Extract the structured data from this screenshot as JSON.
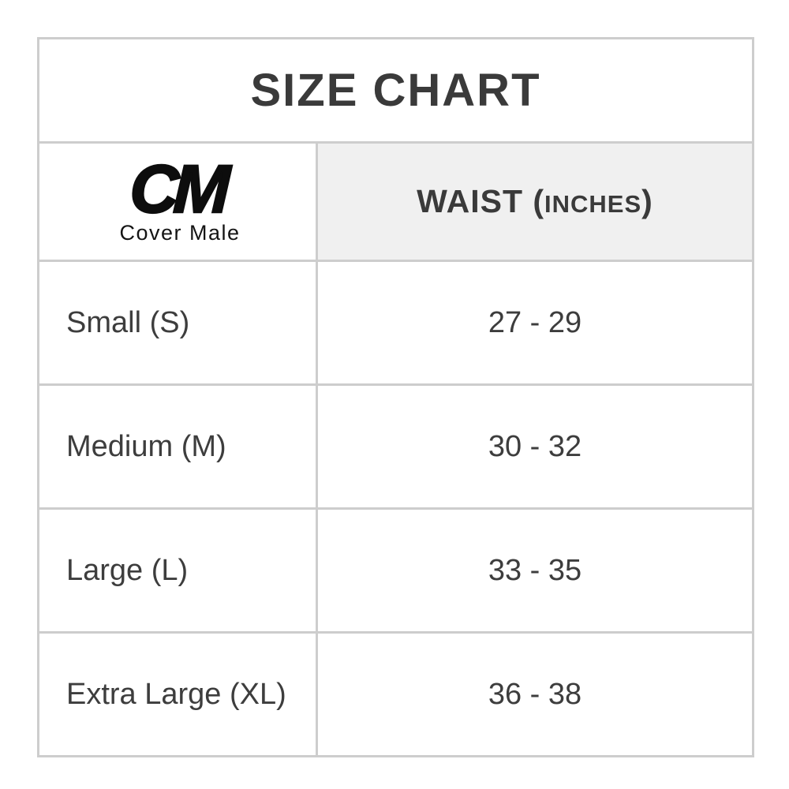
{
  "title": "SIZE CHART",
  "brand": {
    "logo_text": "CM",
    "logo_subtext": "Cover Male"
  },
  "waist_header": {
    "prefix": "WAIST (",
    "small": "INCHES",
    "suffix": ")"
  },
  "table": {
    "rows": [
      {
        "size": "Small (S)",
        "waist": "27 - 29"
      },
      {
        "size": "Medium (M)",
        "waist": "30 - 32"
      },
      {
        "size": "Large (L)",
        "waist": "33 - 35"
      },
      {
        "size": "Extra Large (XL)",
        "waist": "36 - 38"
      }
    ]
  },
  "colors": {
    "border": "#cdcdcd",
    "header_background": "#f0f0f0",
    "text": "#414141",
    "title_text": "#3a3a3a",
    "logo": "#0d0d0d"
  }
}
